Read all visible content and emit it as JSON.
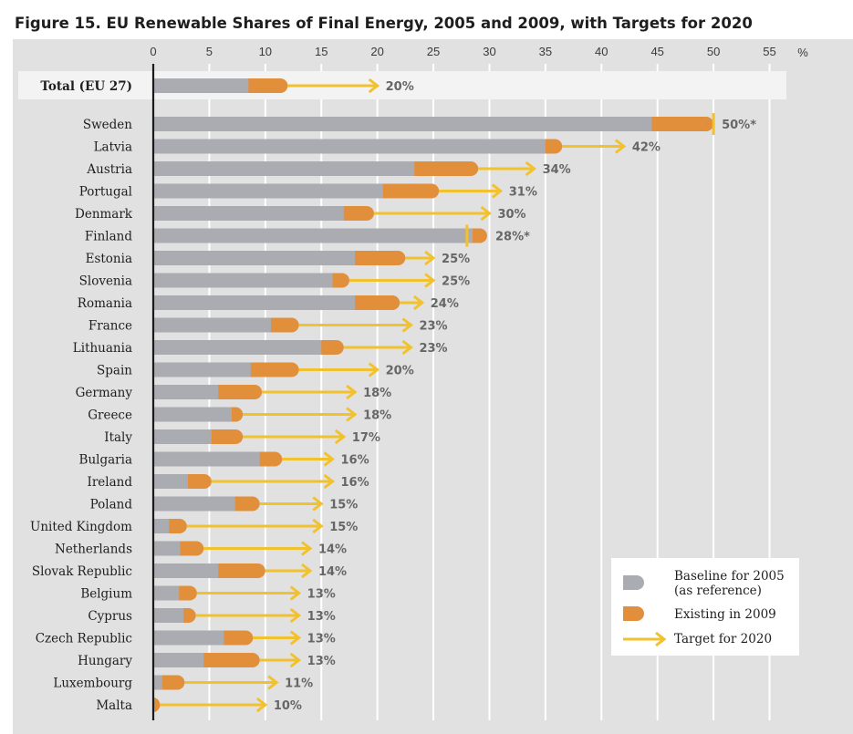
{
  "chart_data": {
    "type": "bar",
    "title": "Figure 15. EU Renewable Shares of Final Energy, 2005 and 2009, with Targets for 2020",
    "unit_label": "%",
    "xlim": [
      0,
      55
    ],
    "x_ticks": [
      0,
      5,
      10,
      15,
      20,
      25,
      30,
      35,
      40,
      45,
      50,
      55
    ],
    "grid": true,
    "legend_position": "bottom-right",
    "total": {
      "name": "Total (EU 27)",
      "baseline_2005": 8.5,
      "existing_2009": 12,
      "target_2020": 20,
      "label": "20%"
    },
    "categories": [
      "Sweden",
      "Latvia",
      "Austria",
      "Portugal",
      "Denmark",
      "Finland",
      "Estonia",
      "Slovenia",
      "Romania",
      "France",
      "Lithuania",
      "Spain",
      "Germany",
      "Greece",
      "Italy",
      "Bulgaria",
      "Ireland",
      "Poland",
      "United Kingdom",
      "Netherlands",
      "Slovak Republic",
      "Belgium",
      "Cyprus",
      "Czech Republic",
      "Hungary",
      "Luxembourg",
      "Malta"
    ],
    "series": [
      {
        "name": "Baseline for 2005 (as reference)",
        "values": [
          44.5,
          35,
          23.3,
          20.5,
          17,
          28.5,
          18,
          16,
          18,
          10.5,
          15,
          8.7,
          5.8,
          7,
          5.2,
          9.5,
          3.1,
          7.3,
          1.4,
          2.4,
          5.8,
          2.3,
          2.7,
          6.3,
          4.5,
          0.8,
          0
        ]
      },
      {
        "name": "Existing in 2009",
        "values": [
          50,
          36.5,
          29,
          25.5,
          19.7,
          29.8,
          22.5,
          17.5,
          22,
          13,
          17,
          13,
          9.7,
          8,
          8,
          11.5,
          5.2,
          9.5,
          3,
          4.5,
          10,
          3.9,
          3.8,
          8.9,
          9.5,
          2.8,
          0.6
        ]
      },
      {
        "name": "Target for 2020",
        "values": [
          50,
          42,
          34,
          31,
          30,
          28,
          25,
          25,
          24,
          23,
          23,
          20,
          18,
          18,
          17,
          16,
          16,
          15,
          15,
          14,
          14,
          13,
          13,
          13,
          13,
          11,
          10
        ]
      }
    ],
    "target_labels": [
      "50%*",
      "42%",
      "34%",
      "31%",
      "30%",
      "28%*",
      "25%",
      "25%",
      "24%",
      "23%",
      "23%",
      "20%",
      "18%",
      "18%",
      "17%",
      "16%",
      "16%",
      "15%",
      "15%",
      "14%",
      "14%",
      "13%",
      "13%",
      "13%",
      "13%",
      "11%",
      "10%"
    ],
    "legend": [
      "Baseline for 2005",
      "(as reference)",
      "Existing in 2009",
      "Target for 2020"
    ],
    "colors": {
      "baseline": "#abacb1",
      "existing": "#e28f3c",
      "target": "#f2c12e",
      "panel": "#e1e1e2",
      "grid": "#ffffff",
      "row_band": "#f3f3f3"
    }
  }
}
